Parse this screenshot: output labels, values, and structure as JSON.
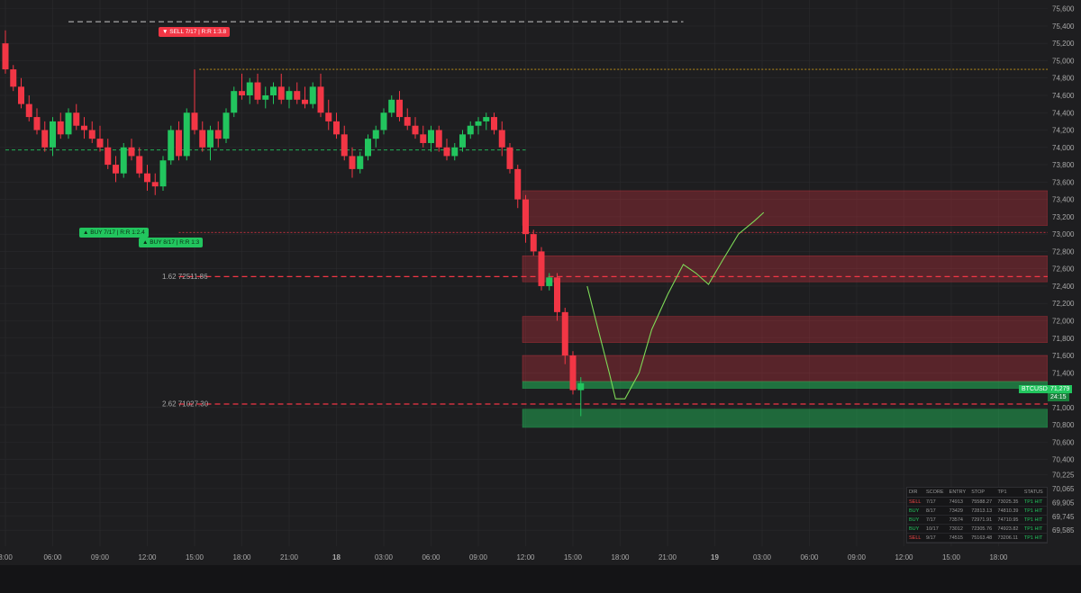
{
  "chart_data": {
    "type": "candlestick",
    "symbol": "BTCUSD",
    "last_price": "71,279",
    "countdown": "24:15",
    "ylim": [
      69400,
      75700
    ],
    "y_ticks": [
      {
        "v": 75600,
        "label": "75,600"
      },
      {
        "v": 75400,
        "label": "75,400"
      },
      {
        "v": 75200,
        "label": "75,200"
      },
      {
        "v": 75000,
        "label": "75,000"
      },
      {
        "v": 74800,
        "label": "74,800"
      },
      {
        "v": 74600,
        "label": "74,600"
      },
      {
        "v": 74400,
        "label": "74,400"
      },
      {
        "v": 74200,
        "label": "74,200"
      },
      {
        "v": 74000,
        "label": "74,000"
      },
      {
        "v": 73800,
        "label": "73,800"
      },
      {
        "v": 73600,
        "label": "73,600"
      },
      {
        "v": 73400,
        "label": "73,400"
      },
      {
        "v": 73200,
        "label": "73,200"
      },
      {
        "v": 73000,
        "label": "73,000"
      },
      {
        "v": 72800,
        "label": "72,800"
      },
      {
        "v": 72600,
        "label": "72,600"
      },
      {
        "v": 72400,
        "label": "72,400"
      },
      {
        "v": 72200,
        "label": "72,200"
      },
      {
        "v": 72000,
        "label": "72,000"
      },
      {
        "v": 71800,
        "label": "71,800"
      },
      {
        "v": 71600,
        "label": "71,600"
      },
      {
        "v": 71400,
        "label": "71,400"
      },
      {
        "v": 71000,
        "label": "71,000"
      },
      {
        "v": 70800,
        "label": "70,800"
      },
      {
        "v": 70600,
        "label": "70,600"
      },
      {
        "v": 70400,
        "label": "70,400"
      },
      {
        "v": 70225,
        "label": "70,225"
      },
      {
        "v": 70065,
        "label": "70,065"
      },
      {
        "v": 69905,
        "label": "69,905"
      },
      {
        "v": 69745,
        "label": "69,745"
      },
      {
        "v": 69585,
        "label": "69,585"
      }
    ],
    "x_ticks": [
      {
        "t": 0,
        "label": "3:00"
      },
      {
        "t": 3,
        "label": "06:00"
      },
      {
        "t": 6,
        "label": "09:00"
      },
      {
        "t": 9,
        "label": "12:00"
      },
      {
        "t": 12,
        "label": "15:00"
      },
      {
        "t": 15,
        "label": "18:00"
      },
      {
        "t": 18,
        "label": "21:00"
      },
      {
        "t": 21,
        "label": "18"
      },
      {
        "t": 24,
        "label": "03:00"
      },
      {
        "t": 27,
        "label": "06:00"
      },
      {
        "t": 30,
        "label": "09:00"
      },
      {
        "t": 33,
        "label": "12:00"
      },
      {
        "t": 36,
        "label": "15:00"
      },
      {
        "t": 39,
        "label": "18:00"
      },
      {
        "t": 42,
        "label": "21:00"
      },
      {
        "t": 45,
        "label": "19"
      },
      {
        "t": 48,
        "label": "03:00"
      },
      {
        "t": 51,
        "label": "06:00"
      },
      {
        "t": 54,
        "label": "09:00"
      },
      {
        "t": 57,
        "label": "12:00"
      },
      {
        "t": 60,
        "label": "15:00"
      },
      {
        "t": 63,
        "label": "18:00"
      }
    ],
    "candles": [
      [
        0,
        75200,
        75350,
        74850,
        74900
      ],
      [
        0.5,
        74900,
        74950,
        74650,
        74700
      ],
      [
        1,
        74700,
        74800,
        74450,
        74500
      ],
      [
        1.5,
        74500,
        74600,
        74300,
        74350
      ],
      [
        2,
        74350,
        74450,
        74150,
        74200
      ],
      [
        2.5,
        74200,
        74300,
        73950,
        74000
      ],
      [
        3,
        74000,
        74350,
        73900,
        74300
      ],
      [
        3.5,
        74300,
        74400,
        74100,
        74150
      ],
      [
        4,
        74150,
        74450,
        74100,
        74400
      ],
      [
        4.5,
        74400,
        74500,
        74200,
        74250
      ],
      [
        5,
        74250,
        74350,
        74100,
        74200
      ],
      [
        5.5,
        74200,
        74300,
        74050,
        74100
      ],
      [
        6,
        74100,
        74250,
        73950,
        74000
      ],
      [
        6.5,
        74000,
        74100,
        73750,
        73800
      ],
      [
        7,
        73800,
        73900,
        73600,
        73700
      ],
      [
        7.5,
        73700,
        74050,
        73650,
        74000
      ],
      [
        8,
        74000,
        74100,
        73850,
        73900
      ],
      [
        8.5,
        73900,
        74000,
        73650,
        73700
      ],
      [
        9,
        73700,
        73800,
        73500,
        73600
      ],
      [
        9.5,
        73600,
        73700,
        73450,
        73550
      ],
      [
        10,
        73550,
        73900,
        73500,
        73850
      ],
      [
        10.5,
        73850,
        74250,
        73800,
        74200
      ],
      [
        11,
        74200,
        74300,
        73850,
        73900
      ],
      [
        11.5,
        73900,
        74450,
        73850,
        74400
      ],
      [
        12,
        74400,
        74900,
        74150,
        74200
      ],
      [
        12.5,
        74200,
        74300,
        73950,
        74000
      ],
      [
        13,
        74000,
        74250,
        73850,
        74200
      ],
      [
        13.5,
        74200,
        74300,
        74000,
        74100
      ],
      [
        14,
        74100,
        74450,
        74050,
        74400
      ],
      [
        14.5,
        74400,
        74700,
        74350,
        74650
      ],
      [
        15,
        74650,
        74850,
        74550,
        74600
      ],
      [
        15.5,
        74600,
        74800,
        74500,
        74750
      ],
      [
        16,
        74750,
        74850,
        74500,
        74550
      ],
      [
        16.5,
        74550,
        74700,
        74450,
        74600
      ],
      [
        17,
        74600,
        74750,
        74500,
        74700
      ],
      [
        17.5,
        74700,
        74850,
        74500,
        74550
      ],
      [
        18,
        74550,
        74700,
        74450,
        74650
      ],
      [
        18.5,
        74650,
        74750,
        74500,
        74550
      ],
      [
        19,
        74550,
        74700,
        74450,
        74500
      ],
      [
        19.5,
        74500,
        74750,
        74450,
        74700
      ],
      [
        20,
        74700,
        74850,
        74350,
        74400
      ],
      [
        20.5,
        74400,
        74550,
        74200,
        74300
      ],
      [
        21,
        74300,
        74400,
        74100,
        74150
      ],
      [
        21.5,
        74150,
        74250,
        73850,
        73900
      ],
      [
        22,
        73900,
        74000,
        73650,
        73750
      ],
      [
        22.5,
        73750,
        73950,
        73700,
        73900
      ],
      [
        23,
        73900,
        74150,
        73850,
        74100
      ],
      [
        23.5,
        74100,
        74250,
        74000,
        74200
      ],
      [
        24,
        74200,
        74450,
        74150,
        74400
      ],
      [
        24.5,
        74400,
        74600,
        74350,
        74550
      ],
      [
        25,
        74550,
        74650,
        74300,
        74350
      ],
      [
        25.5,
        74350,
        74450,
        74200,
        74250
      ],
      [
        26,
        74250,
        74350,
        74100,
        74150
      ],
      [
        26.5,
        74150,
        74250,
        74000,
        74050
      ],
      [
        27,
        74050,
        74250,
        73950,
        74200
      ],
      [
        27.5,
        74200,
        74250,
        73950,
        74000
      ],
      [
        28,
        74000,
        74100,
        73850,
        73900
      ],
      [
        28.5,
        73900,
        74050,
        73850,
        74000
      ],
      [
        29,
        74000,
        74200,
        73950,
        74150
      ],
      [
        29.5,
        74150,
        74300,
        74100,
        74250
      ],
      [
        30,
        74250,
        74350,
        74150,
        74300
      ],
      [
        30.5,
        74300,
        74400,
        74200,
        74350
      ],
      [
        31,
        74350,
        74400,
        74150,
        74200
      ],
      [
        31.5,
        74200,
        74300,
        73900,
        74000
      ],
      [
        32,
        74000,
        74050,
        73700,
        73750
      ],
      [
        32.5,
        73750,
        73800,
        73300,
        73400
      ],
      [
        33,
        73400,
        73450,
        72900,
        73000
      ],
      [
        33.5,
        73000,
        73050,
        72750,
        72800
      ],
      [
        34,
        72800,
        72850,
        72350,
        72400
      ],
      [
        34.5,
        72400,
        72550,
        72350,
        72500
      ],
      [
        35,
        72500,
        72550,
        72000,
        72100
      ],
      [
        35.5,
        72100,
        72150,
        71500,
        71600
      ],
      [
        36,
        71600,
        71650,
        71150,
        71200
      ],
      [
        36.5,
        71200,
        71350,
        70900,
        71279
      ]
    ],
    "zones": [
      {
        "from": 73500,
        "to": 73100,
        "color": "#f23645",
        "alpha": 0.28
      },
      {
        "from": 72750,
        "to": 72450,
        "color": "#f23645",
        "alpha": 0.28
      },
      {
        "from": 72050,
        "to": 71750,
        "color": "#f23645",
        "alpha": 0.28
      },
      {
        "from": 71600,
        "to": 71300,
        "color": "#f23645",
        "alpha": 0.28
      },
      {
        "from": 71300,
        "to": 71220,
        "color": "#22c55e",
        "alpha": 0.5
      },
      {
        "from": 70980,
        "to": 70770,
        "color": "#22c55e",
        "alpha": 0.45
      }
    ],
    "level_lines": [
      {
        "v": 75450,
        "color": "#c8c8c8",
        "dash": "6,4",
        "from_t": 4,
        "to_t": 43,
        "width": 1
      },
      {
        "v": 74900,
        "color": "#d4a017",
        "dash": "2,2",
        "from_t": 12.3,
        "to_t": 100,
        "width": 0.8
      },
      {
        "v": 73970,
        "color": "#22c55e",
        "dash": "4,3",
        "from_t": 0,
        "to_t": 33,
        "width": 0.8
      },
      {
        "v": 73020,
        "color": "#f23645",
        "dash": "2,2",
        "from_t": 11,
        "to_t": 100,
        "width": 0.8
      },
      {
        "v": 72510,
        "color": "#f23645",
        "dash": "6,4",
        "from_t": 11,
        "to_t": 100,
        "width": 1.2
      },
      {
        "v": 71040,
        "color": "#f23645",
        "dash": "6,4",
        "from_t": 11,
        "to_t": 100,
        "width": 1.2
      }
    ],
    "projection": [
      [
        36.9,
        72400
      ],
      [
        37.6,
        71900
      ],
      [
        38.3,
        71400
      ],
      [
        38.7,
        71100
      ],
      [
        39.3,
        71100
      ],
      [
        40.2,
        71400
      ],
      [
        41,
        71900
      ],
      [
        42,
        72300
      ],
      [
        43,
        72650
      ],
      [
        43.8,
        72550
      ],
      [
        44.6,
        72420
      ],
      [
        45.5,
        72700
      ],
      [
        46.5,
        73000
      ],
      [
        47.5,
        73150
      ],
      [
        48.1,
        73250
      ]
    ],
    "annotations": {
      "sell": "▼ SELL  7/17 | R:R 1:3.8",
      "buy1": "▲ BUY  7/17 | R:R 1:2.4",
      "buy2": "▲ BUY  8/17 | R:R 1:3",
      "lvl1": "1.62 72511.86",
      "lvl2": "2.62 71027.30"
    }
  },
  "signals_table": {
    "headers": [
      "DIR",
      "SCORE",
      "ENTRY",
      "STOP",
      "TP1",
      "STATUS"
    ],
    "rows": [
      {
        "dir": "SELL",
        "score": "7/17",
        "entry": "74913",
        "stop": "75588.27",
        "tp1": "73025.35",
        "status": "TP1 HIT"
      },
      {
        "dir": "BUY",
        "score": "8/17",
        "entry": "73429",
        "stop": "72813.13",
        "tp1": "74810.39",
        "status": "TP1 HIT"
      },
      {
        "dir": "BUY",
        "score": "7/17",
        "entry": "73574",
        "stop": "72971.91",
        "tp1": "74710.95",
        "status": "TP1 HIT"
      },
      {
        "dir": "BUY",
        "score": "10/17",
        "entry": "73012",
        "stop": "72305.76",
        "tp1": "74923.82",
        "status": "TP1 HIT"
      },
      {
        "dir": "SELL",
        "score": "9/17",
        "entry": "74515",
        "stop": "75163.48",
        "tp1": "73206.11",
        "status": "TP1 HIT"
      }
    ]
  },
  "colors": {
    "bull": "#22c55e",
    "bear": "#f23645",
    "bg": "#1e1e20",
    "grid": "#2a2a2d"
  }
}
